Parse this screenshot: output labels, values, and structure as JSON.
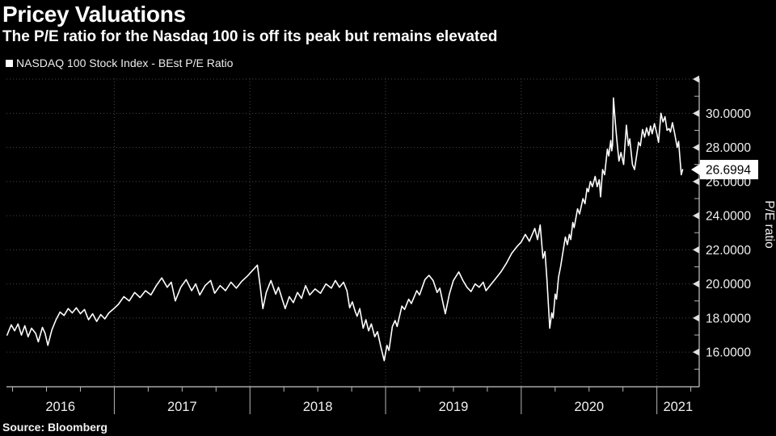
{
  "header": {
    "title": "Pricey Valuations",
    "subtitle": "The P/E ratio for the Nasdaq 100 is off its peak but remains elevated"
  },
  "legend": {
    "label": "NASDAQ 100 Stock Index - BEst P/E Ratio"
  },
  "footer": {
    "source": "Source: Bloomberg"
  },
  "chart_data": {
    "type": "line",
    "title": "Pricey Valuations",
    "ylabel": "P/E ratio",
    "xlabel": "",
    "grid": "dotted",
    "legend_position": "top-left",
    "xlim": [
      2016.205,
      2021.312
    ],
    "ylim": [
      13.97,
      32.05
    ],
    "yticks_major": [
      16,
      18,
      20,
      22,
      24,
      26,
      28,
      30
    ],
    "ytick_labels": [
      "16.0000",
      "18.0000",
      "20.0000",
      "22.0000",
      "24.0000",
      "26.0000",
      "28.0000",
      "30.0000"
    ],
    "yticks_minor": [
      15,
      17,
      19,
      21,
      23,
      25,
      27,
      29,
      31
    ],
    "yticks_unlabeled": [
      32
    ],
    "x_year_boundaries": [
      2017,
      2018,
      2019,
      2020,
      2021
    ],
    "x_year_labels": [
      "2016",
      "2017",
      "2018",
      "2019",
      "2020",
      "2021"
    ],
    "x_minor_tick_step": 0.25,
    "last_value": 26.6994,
    "last_value_label": "26.6994",
    "colors": {
      "background": "#000000",
      "line": "#ffffff",
      "grid": "#474747",
      "axis": "#c8c8c8",
      "tick": "#b8b8b8",
      "text": "#f0f0f0",
      "flag_bg": "#ffffff",
      "flag_text": "#000000"
    },
    "series": [
      {
        "name": "NASDAQ 100 Stock Index - BEst P/E Ratio",
        "color": "#ffffff",
        "points": [
          [
            2016.21,
            17.0
          ],
          [
            2016.24,
            17.6
          ],
          [
            2016.265,
            17.25
          ],
          [
            2016.29,
            17.65
          ],
          [
            2016.315,
            17.0
          ],
          [
            2016.34,
            17.55
          ],
          [
            2016.365,
            16.9
          ],
          [
            2016.39,
            17.4
          ],
          [
            2016.42,
            17.1
          ],
          [
            2016.44,
            16.6
          ],
          [
            2016.47,
            17.45
          ],
          [
            2016.49,
            17.1
          ],
          [
            2016.51,
            16.4
          ],
          [
            2016.54,
            17.3
          ],
          [
            2016.57,
            17.9
          ],
          [
            2016.6,
            18.35
          ],
          [
            2016.63,
            18.15
          ],
          [
            2016.66,
            18.55
          ],
          [
            2016.69,
            18.3
          ],
          [
            2016.72,
            18.6
          ],
          [
            2016.75,
            18.25
          ],
          [
            2016.78,
            18.5
          ],
          [
            2016.81,
            17.9
          ],
          [
            2016.84,
            18.25
          ],
          [
            2016.87,
            17.8
          ],
          [
            2016.9,
            18.2
          ],
          [
            2016.93,
            17.95
          ],
          [
            2016.96,
            18.3
          ],
          [
            2016.99,
            18.5
          ],
          [
            2017.03,
            18.8
          ],
          [
            2017.07,
            19.25
          ],
          [
            2017.11,
            19.0
          ],
          [
            2017.15,
            19.5
          ],
          [
            2017.19,
            19.2
          ],
          [
            2017.23,
            19.6
          ],
          [
            2017.27,
            19.35
          ],
          [
            2017.31,
            19.9
          ],
          [
            2017.35,
            20.35
          ],
          [
            2017.39,
            19.8
          ],
          [
            2017.42,
            20.1
          ],
          [
            2017.45,
            19.0
          ],
          [
            2017.49,
            19.8
          ],
          [
            2017.53,
            20.25
          ],
          [
            2017.57,
            19.6
          ],
          [
            2017.6,
            20.0
          ],
          [
            2017.63,
            19.35
          ],
          [
            2017.67,
            19.9
          ],
          [
            2017.71,
            20.2
          ],
          [
            2017.74,
            19.45
          ],
          [
            2017.78,
            19.9
          ],
          [
            2017.82,
            19.6
          ],
          [
            2017.86,
            20.1
          ],
          [
            2017.9,
            19.75
          ],
          [
            2017.94,
            20.15
          ],
          [
            2017.98,
            20.45
          ],
          [
            2018.02,
            20.8
          ],
          [
            2018.055,
            21.1
          ],
          [
            2018.075,
            19.9
          ],
          [
            2018.095,
            18.55
          ],
          [
            2018.12,
            19.5
          ],
          [
            2018.155,
            20.2
          ],
          [
            2018.19,
            19.4
          ],
          [
            2018.21,
            19.8
          ],
          [
            2018.26,
            18.55
          ],
          [
            2018.29,
            19.25
          ],
          [
            2018.32,
            18.9
          ],
          [
            2018.35,
            19.5
          ],
          [
            2018.38,
            19.15
          ],
          [
            2018.41,
            19.9
          ],
          [
            2018.44,
            19.35
          ],
          [
            2018.48,
            19.7
          ],
          [
            2018.52,
            19.45
          ],
          [
            2018.56,
            20.0
          ],
          [
            2018.6,
            19.75
          ],
          [
            2018.63,
            20.2
          ],
          [
            2018.66,
            19.8
          ],
          [
            2018.69,
            20.1
          ],
          [
            2018.715,
            19.6
          ],
          [
            2018.735,
            18.6
          ],
          [
            2018.755,
            18.95
          ],
          [
            2018.775,
            18.4
          ],
          [
            2018.79,
            18.1
          ],
          [
            2018.81,
            18.55
          ],
          [
            2018.835,
            17.4
          ],
          [
            2018.855,
            17.9
          ],
          [
            2018.875,
            17.25
          ],
          [
            2018.895,
            17.65
          ],
          [
            2018.92,
            16.9
          ],
          [
            2018.94,
            17.2
          ],
          [
            2018.965,
            16.3
          ],
          [
            2018.99,
            15.5
          ],
          [
            2019.01,
            16.4
          ],
          [
            2019.025,
            16.1
          ],
          [
            2019.05,
            17.5
          ],
          [
            2019.07,
            17.85
          ],
          [
            2019.085,
            17.5
          ],
          [
            2019.12,
            18.7
          ],
          [
            2019.14,
            18.5
          ],
          [
            2019.17,
            19.1
          ],
          [
            2019.19,
            18.85
          ],
          [
            2019.23,
            19.6
          ],
          [
            2019.25,
            19.35
          ],
          [
            2019.29,
            20.25
          ],
          [
            2019.32,
            20.5
          ],
          [
            2019.35,
            20.2
          ],
          [
            2019.38,
            19.5
          ],
          [
            2019.4,
            19.75
          ],
          [
            2019.44,
            18.25
          ],
          [
            2019.47,
            19.4
          ],
          [
            2019.5,
            20.2
          ],
          [
            2019.54,
            20.7
          ],
          [
            2019.57,
            20.2
          ],
          [
            2019.6,
            19.8
          ],
          [
            2019.63,
            19.55
          ],
          [
            2019.66,
            20.0
          ],
          [
            2019.69,
            19.8
          ],
          [
            2019.72,
            20.1
          ],
          [
            2019.74,
            19.6
          ],
          [
            2019.77,
            19.9
          ],
          [
            2019.81,
            20.3
          ],
          [
            2019.85,
            20.7
          ],
          [
            2019.89,
            21.2
          ],
          [
            2019.93,
            21.8
          ],
          [
            2019.97,
            22.2
          ],
          [
            2020.0,
            22.45
          ],
          [
            2020.03,
            22.9
          ],
          [
            2020.06,
            22.5
          ],
          [
            2020.1,
            23.25
          ],
          [
            2020.12,
            22.6
          ],
          [
            2020.14,
            23.45
          ],
          [
            2020.16,
            21.5
          ],
          [
            2020.175,
            21.9
          ],
          [
            2020.19,
            20.2
          ],
          [
            2020.2,
            18.8
          ],
          [
            2020.21,
            17.4
          ],
          [
            2020.225,
            18.3
          ],
          [
            2020.235,
            18.0
          ],
          [
            2020.25,
            19.4
          ],
          [
            2020.26,
            19.1
          ],
          [
            2020.275,
            20.4
          ],
          [
            2020.29,
            21.0
          ],
          [
            2020.31,
            22.0
          ],
          [
            2020.325,
            22.75
          ],
          [
            2020.34,
            22.3
          ],
          [
            2020.355,
            22.9
          ],
          [
            2020.365,
            22.6
          ],
          [
            2020.38,
            23.6
          ],
          [
            2020.39,
            23.3
          ],
          [
            2020.415,
            24.4
          ],
          [
            2020.43,
            24.1
          ],
          [
            2020.455,
            25.0
          ],
          [
            2020.47,
            24.7
          ],
          [
            2020.485,
            25.6
          ],
          [
            2020.495,
            25.4
          ],
          [
            2020.51,
            26.0
          ],
          [
            2020.525,
            25.7
          ],
          [
            2020.545,
            26.3
          ],
          [
            2020.56,
            25.7
          ],
          [
            2020.575,
            26.1
          ],
          [
            2020.585,
            25.1
          ],
          [
            2020.6,
            26.7
          ],
          [
            2020.615,
            26.4
          ],
          [
            2020.635,
            27.9
          ],
          [
            2020.645,
            27.5
          ],
          [
            2020.66,
            28.4
          ],
          [
            2020.667,
            27.8
          ],
          [
            2020.673,
            28.15
          ],
          [
            2020.68,
            30.9
          ],
          [
            2020.695,
            29.3
          ],
          [
            2020.705,
            28.45
          ],
          [
            2020.72,
            27.2
          ],
          [
            2020.735,
            27.7
          ],
          [
            2020.755,
            27.0
          ],
          [
            2020.775,
            29.3
          ],
          [
            2020.79,
            28.1
          ],
          [
            2020.8,
            28.5
          ],
          [
            2020.82,
            27.0
          ],
          [
            2020.835,
            26.7
          ],
          [
            2020.865,
            28.3
          ],
          [
            2020.878,
            28.1
          ],
          [
            2020.894,
            29.05
          ],
          [
            2020.91,
            28.6
          ],
          [
            2020.924,
            29.15
          ],
          [
            2020.94,
            28.7
          ],
          [
            2020.953,
            29.25
          ],
          [
            2020.965,
            28.8
          ],
          [
            2020.982,
            29.4
          ],
          [
            2021.0,
            28.8
          ],
          [
            2021.012,
            28.3
          ],
          [
            2021.03,
            30.0
          ],
          [
            2021.045,
            29.5
          ],
          [
            2021.06,
            29.8
          ],
          [
            2021.075,
            29.0
          ],
          [
            2021.09,
            29.1
          ],
          [
            2021.1,
            28.9
          ],
          [
            2021.115,
            29.45
          ],
          [
            2021.13,
            28.85
          ],
          [
            2021.15,
            28.0
          ],
          [
            2021.16,
            28.35
          ],
          [
            2021.18,
            26.4
          ],
          [
            2021.19,
            26.6994
          ]
        ]
      }
    ]
  }
}
